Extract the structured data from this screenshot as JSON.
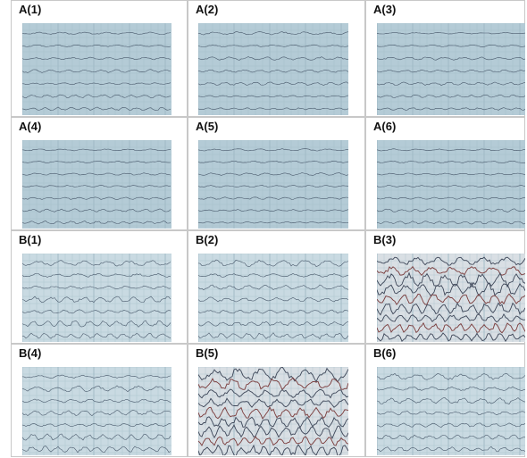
{
  "panels": [
    {
      "label": "A(1)"
    },
    {
      "label": "A(2)"
    },
    {
      "label": "A(3)"
    },
    {
      "label": "A(4)"
    },
    {
      "label": "A(5)"
    },
    {
      "label": "A(6)"
    },
    {
      "label": "B(1)"
    },
    {
      "label": "B(2)"
    },
    {
      "label": "B(3)"
    },
    {
      "label": "B(4)"
    },
    {
      "label": "B(5)"
    },
    {
      "label": "B(6)"
    }
  ]
}
